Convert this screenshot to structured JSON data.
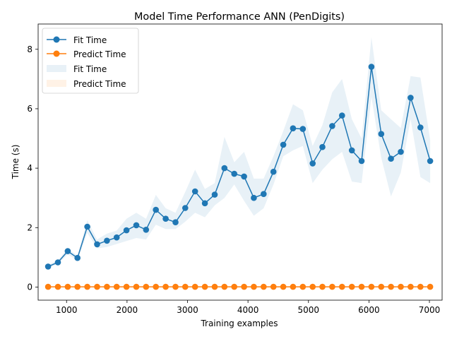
{
  "chart_data": {
    "type": "line",
    "title": "Model Time Performance ANN (PenDigits)",
    "xlabel": "Training examples",
    "ylabel": "Time (s)",
    "xlim": [
      530,
      7210
    ],
    "ylim": [
      -0.44,
      8.85
    ],
    "xticks": [
      1000,
      2000,
      3000,
      4000,
      5000,
      6000,
      7000
    ],
    "yticks": [
      0,
      2,
      4,
      6,
      8
    ],
    "grid": false,
    "legend_position": "top-left",
    "legend": [
      "Fit Time",
      "Predict Time",
      "Fit Time",
      "Predict Time"
    ],
    "x": [
      695,
      857,
      1019,
      1181,
      1343,
      1505,
      1667,
      1829,
      1991,
      2153,
      2315,
      2477,
      2639,
      2801,
      2963,
      3125,
      3287,
      3449,
      3611,
      3773,
      3935,
      4097,
      4259,
      4421,
      4583,
      4745,
      4907,
      5069,
      5231,
      5393,
      5555,
      5717,
      5879,
      6041,
      6203,
      6365,
      6527,
      6689,
      6851,
      7013
    ],
    "series": [
      {
        "name": "Fit Time",
        "color": "#1f77b4",
        "mean": [
          0.69,
          0.83,
          1.21,
          0.98,
          2.03,
          1.44,
          1.56,
          1.67,
          1.91,
          2.08,
          1.93,
          2.6,
          2.3,
          2.18,
          2.66,
          3.22,
          2.82,
          3.11,
          4.0,
          3.81,
          3.72,
          3.0,
          3.13,
          3.88,
          4.79,
          5.34,
          5.32,
          4.16,
          4.71,
          5.42,
          5.77,
          4.6,
          4.24,
          7.41,
          5.15,
          4.32,
          4.55,
          6.37,
          5.37,
          4.24
        ],
        "band_upper": [
          0.75,
          0.9,
          1.3,
          1.05,
          2.25,
          1.6,
          1.8,
          1.9,
          2.3,
          2.5,
          2.3,
          3.1,
          2.65,
          2.5,
          3.2,
          3.95,
          3.3,
          3.5,
          5.05,
          4.2,
          4.55,
          3.65,
          3.65,
          4.4,
          5.25,
          6.15,
          5.95,
          4.75,
          5.45,
          6.55,
          7.0,
          5.65,
          5.0,
          8.4,
          5.95,
          5.65,
          5.35,
          7.1,
          7.05,
          4.95
        ],
        "band_lower": [
          0.65,
          0.78,
          1.1,
          0.9,
          1.82,
          1.3,
          1.35,
          1.45,
          1.55,
          1.65,
          1.6,
          2.1,
          1.95,
          1.95,
          2.2,
          2.5,
          2.35,
          2.75,
          3.0,
          3.45,
          2.9,
          2.4,
          2.65,
          3.45,
          4.4,
          4.6,
          4.75,
          3.5,
          3.95,
          4.3,
          4.55,
          3.55,
          3.5,
          6.4,
          4.35,
          3.05,
          3.85,
          5.65,
          3.7,
          3.5
        ]
      },
      {
        "name": "Predict Time",
        "color": "#ff7f0e",
        "mean": [
          0.01,
          0.01,
          0.01,
          0.01,
          0.01,
          0.01,
          0.01,
          0.01,
          0.01,
          0.01,
          0.01,
          0.01,
          0.01,
          0.01,
          0.01,
          0.01,
          0.01,
          0.01,
          0.01,
          0.01,
          0.01,
          0.01,
          0.01,
          0.01,
          0.01,
          0.01,
          0.01,
          0.01,
          0.01,
          0.01,
          0.01,
          0.01,
          0.01,
          0.01,
          0.01,
          0.01,
          0.01,
          0.01,
          0.01,
          0.01
        ],
        "band_upper": [
          0.012,
          0.012,
          0.012,
          0.012,
          0.012,
          0.012,
          0.012,
          0.012,
          0.012,
          0.012,
          0.012,
          0.012,
          0.012,
          0.012,
          0.012,
          0.012,
          0.012,
          0.012,
          0.012,
          0.012,
          0.012,
          0.012,
          0.012,
          0.012,
          0.012,
          0.012,
          0.012,
          0.012,
          0.012,
          0.012,
          0.012,
          0.012,
          0.012,
          0.012,
          0.012,
          0.012,
          0.012,
          0.012,
          0.012,
          0.012
        ],
        "band_lower": [
          0.008,
          0.008,
          0.008,
          0.008,
          0.008,
          0.008,
          0.008,
          0.008,
          0.008,
          0.008,
          0.008,
          0.008,
          0.008,
          0.008,
          0.008,
          0.008,
          0.008,
          0.008,
          0.008,
          0.008,
          0.008,
          0.008,
          0.008,
          0.008,
          0.008,
          0.008,
          0.008,
          0.008,
          0.008,
          0.008,
          0.008,
          0.008,
          0.008,
          0.008,
          0.008,
          0.008,
          0.008,
          0.008,
          0.008,
          0.008
        ]
      }
    ]
  }
}
